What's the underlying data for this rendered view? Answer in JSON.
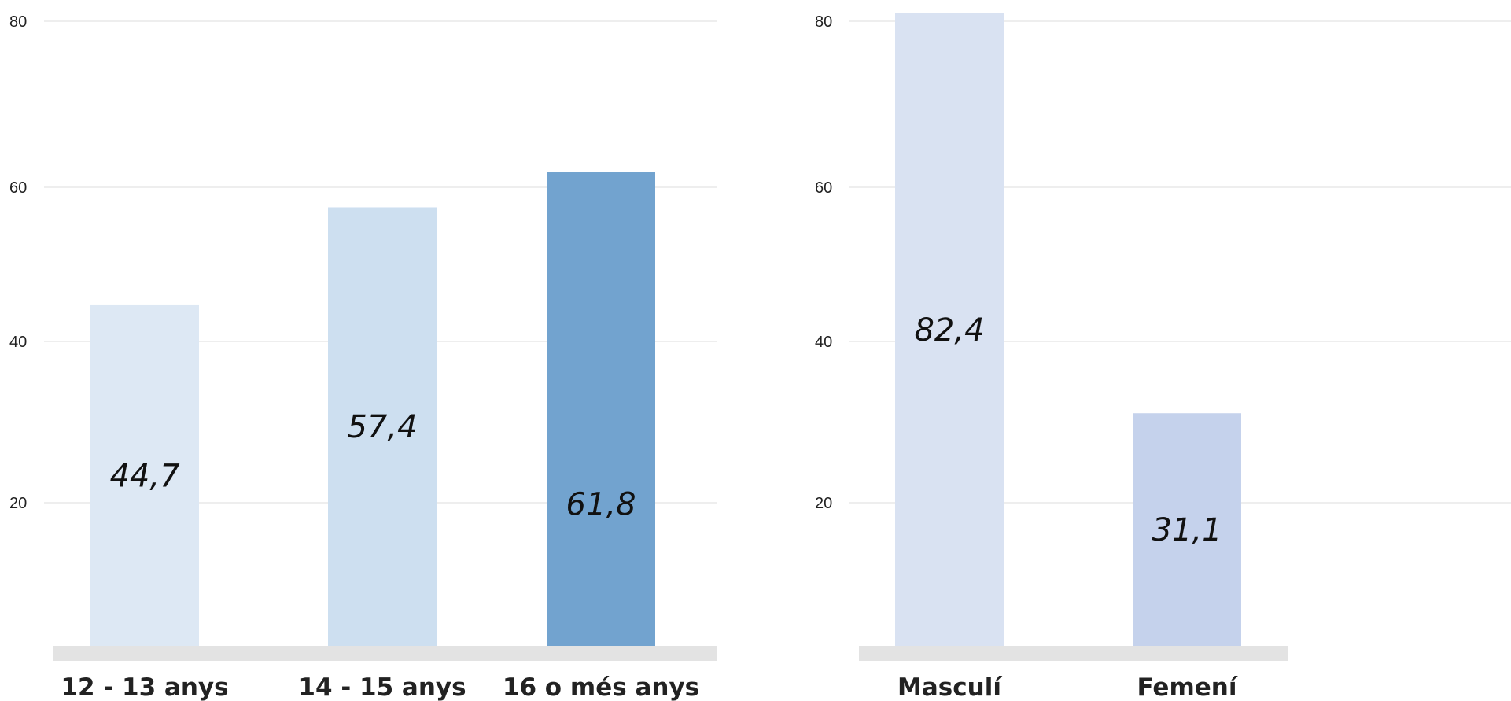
{
  "chart_data": [
    {
      "type": "bar",
      "categories": [
        "12 - 13 anys",
        "14 - 15 anys",
        "16 o més anys"
      ],
      "values": [
        44.7,
        57.4,
        61.8
      ],
      "data_labels": [
        "44,7",
        "57,4",
        "61,8"
      ],
      "yticks": [
        20,
        40,
        60,
        80
      ],
      "ytick_labels": [
        "20",
        "40",
        "60",
        "80"
      ],
      "ylim": [
        0,
        80
      ],
      "grid": true,
      "colors": [
        "#dde8f4",
        "#cddff0",
        "#72a3cf"
      ],
      "title": "",
      "xlabel": "",
      "ylabel": ""
    },
    {
      "type": "bar",
      "categories": [
        "Masculí",
        "Femení"
      ],
      "values": [
        82.4,
        31.1
      ],
      "data_labels": [
        "82,4",
        "31,1"
      ],
      "yticks": [
        20,
        40,
        60,
        80
      ],
      "ytick_labels": [
        "20",
        "40",
        "60",
        "80"
      ],
      "ylim": [
        0,
        80
      ],
      "grid": true,
      "colors": [
        "#d9e2f2",
        "#c5d2ec"
      ],
      "title": "",
      "xlabel": "",
      "ylabel": ""
    }
  ],
  "colors": {
    "baseline": "#e3e3e3",
    "gridline": "#e3e3e3",
    "text": "#222222"
  }
}
